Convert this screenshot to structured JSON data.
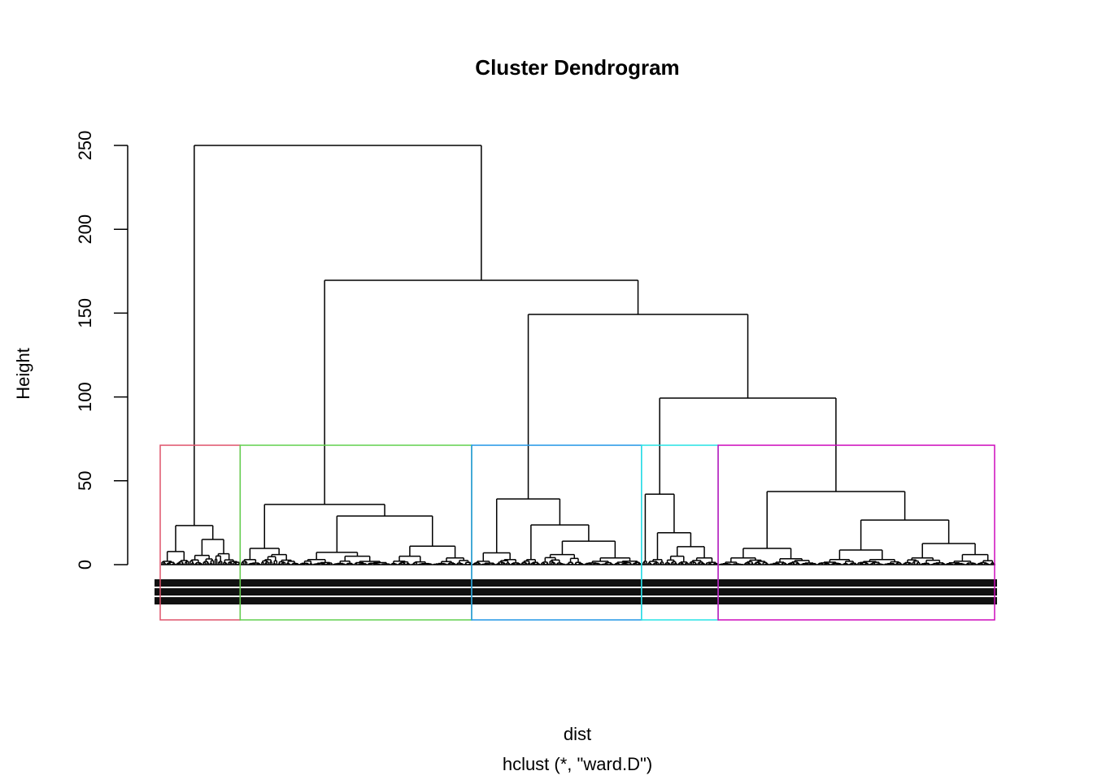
{
  "chart_data": {
    "type": "dendrogram",
    "title": "Cluster Dendrogram",
    "xlabel": "dist",
    "subtitle": "hclust (*, \"ward.D\")",
    "ylabel": "Height",
    "ylim": [
      0,
      250
    ],
    "yticks": [
      "0",
      "50",
      "100",
      "150",
      "200",
      "250"
    ],
    "cut_height": 71.2,
    "n_leaves": 501,
    "tree": {
      "h": 250,
      "c": [
        {
          "h": 23.3,
          "c": [
            {
              "h": 7.8,
              "c": [
                {
                  "n": 9,
                  "h": 2
                },
                {
                  "n": 8,
                  "h": 2.5
                }
              ]
            },
            {
              "h": 15,
              "c": [
                {
                  "n": 15,
                  "h": 5.5
                },
                {
                  "n": 16,
                  "h": 6.5
                }
              ]
            }
          ]
        },
        {
          "h": 169.6,
          "c": [
            {
              "h": 35.9,
              "c": [
                {
                  "h": 9.7,
                  "c": [
                    {
                      "n": 12,
                      "h": 3
                    },
                    {
                      "n": 23,
                      "h": 6
                    }
                  ]
                },
                {
                  "h": 29,
                  "c": [
                    {
                      "h": 7.3,
                      "c": [
                        {
                          "n": 20,
                          "h": 3
                        },
                        {
                          "n": 35,
                          "h": 5
                        }
                      ]
                    },
                    {
                      "h": 11,
                      "c": [
                        {
                          "n": 25,
                          "h": 5
                        },
                        {
                          "n": 24,
                          "h": 4
                        }
                      ]
                    }
                  ]
                }
              ]
            },
            {
              "h": 149.2,
              "c": [
                {
                  "h": 39.2,
                  "c": [
                    {
                      "h": 7,
                      "c": [
                        {
                          "n": 14,
                          "h": 2
                        },
                        {
                          "n": 15,
                          "h": 3
                        }
                      ]
                    },
                    {
                      "h": 23.7,
                      "c": [
                        {
                          "n": 12,
                          "h": 3
                        },
                        {
                          "h": 14,
                          "c": [
                            {
                              "n": 26,
                              "h": 6
                            },
                            {
                              "n": 35,
                              "h": 4
                            }
                          ]
                        }
                      ]
                    }
                  ]
                },
                {
                  "h": 99.3,
                  "c": [
                    {
                      "h": 42,
                      "c": [
                        {
                          "n": 3,
                          "h": 2
                        },
                        {
                          "h": 19,
                          "c": [
                            {
                              "n": 10,
                              "h": 3
                            },
                            {
                              "h": 10.7,
                              "c": [
                                {
                                  "n": 15,
                                  "h": 5
                                },
                                {
                                  "n": 18,
                                  "h": 4
                                }
                              ]
                            }
                          ]
                        }
                      ]
                    },
                    {
                      "h": 43.6,
                      "c": [
                        {
                          "h": 9.7,
                          "c": [
                            {
                              "n": 30,
                              "h": 4
                            },
                            {
                              "n": 29,
                              "h": 3.5
                            }
                          ]
                        },
                        {
                          "h": 26.6,
                          "c": [
                            {
                              "h": 8.7,
                              "c": [
                                {
                                  "n": 24,
                                  "h": 3
                                },
                                {
                                  "n": 27,
                                  "h": 3
                                }
                              ]
                            },
                            {
                              "h": 12.6,
                              "c": [
                                {
                                  "n": 26,
                                  "h": 4
                                },
                                {
                                  "n": 30,
                                  "h": 6
                                }
                              ]
                            }
                          ]
                        }
                      ]
                    }
                  ]
                }
              ]
            }
          ]
        }
      ]
    },
    "rect_clusters": [
      {
        "cluster": 1,
        "n": 48,
        "color": "#DF536B"
      },
      {
        "cluster": 2,
        "n": 139,
        "color": "#61D04F"
      },
      {
        "cluster": 3,
        "n": 102,
        "color": "#2297E6"
      },
      {
        "cluster": 4,
        "n": 46,
        "color": "#28E2E5"
      },
      {
        "cluster": 5,
        "n": 166,
        "color": "#CD0BBC"
      }
    ]
  }
}
